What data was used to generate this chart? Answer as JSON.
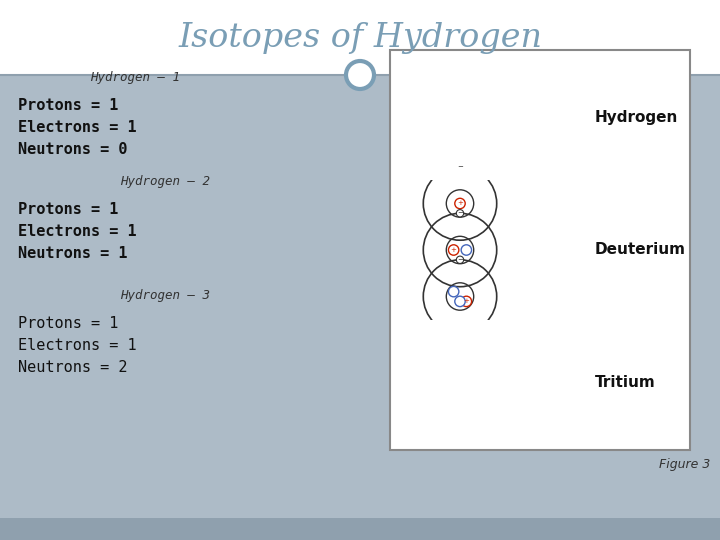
{
  "title": "Isotopes of Hydrogen",
  "title_color": "#7a9eb5",
  "title_fontsize": 24,
  "bg_top": "#ffffff",
  "bg_bottom": "#adbbc7",
  "bg_footer": "#8fa0ae",
  "header_line_color": "#8fa0ae",
  "circle_top_color": "#7a9eb5",
  "panel_bg": "#ffffff",
  "panel_border": "#888888",
  "isotopes": [
    {
      "label": "Hydrogen – 1",
      "lines": [
        "Protons = 1",
        "Electrons = 1",
        "Neutrons = 0"
      ],
      "label_indent": 0.13,
      "lines_bold": [
        true,
        true,
        true
      ]
    },
    {
      "label": "Hydrogen – 2",
      "lines": [
        "Protons = 1",
        "Electrons = 1",
        "Neutrons = 1"
      ],
      "label_indent": 0.17,
      "lines_bold": [
        true,
        true,
        true
      ]
    },
    {
      "label": "Hydrogen – 3",
      "lines": [
        "Protons = 1",
        "Electrons = 1",
        "Neutrons = 2"
      ],
      "label_indent": 0.17,
      "lines_bold": [
        false,
        false,
        false
      ]
    }
  ],
  "panel_labels": [
    "Hydrogen",
    "Deuterium",
    "Tritium"
  ],
  "figure_caption": "Figure 3",
  "proton_color": "#cc2200",
  "neutron_color": "#4466bb",
  "electron_color": "#333333",
  "orbit_color": "#333333"
}
